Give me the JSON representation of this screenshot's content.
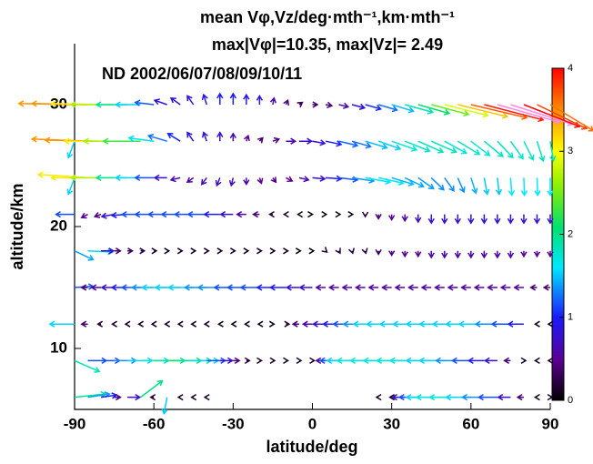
{
  "chart_data": {
    "type": "quiver",
    "title": "mean Vφ,Vz/deg·mth⁻¹,km·mth⁻¹",
    "subtitle": "max|Vφ|=10.35, max|Vz|= 2.49",
    "annotation": "ND  2002/06/07/08/09/10/11",
    "xlabel": "latitude/deg",
    "ylabel": "altitude/km",
    "xlim": [
      -90,
      90
    ],
    "ylim": [
      5,
      35
    ],
    "xticks": [
      -90,
      -60,
      -30,
      0,
      30,
      60,
      90
    ],
    "yticks": [
      10,
      20,
      30
    ],
    "colorbar": {
      "lim": [
        0,
        4
      ],
      "ticks": [
        0,
        1,
        2,
        3,
        4
      ]
    },
    "x": [
      -90,
      -85,
      -80,
      -75,
      -70,
      -65,
      -60,
      -55,
      -50,
      -45,
      -40,
      -35,
      -30,
      -25,
      -20,
      -15,
      -10,
      -5,
      0,
      5,
      10,
      15,
      20,
      25,
      30,
      35,
      40,
      45,
      50,
      55,
      60,
      65,
      70,
      75,
      80,
      85,
      90
    ],
    "rows": [
      {
        "altitude": 30,
        "u": [
          -9,
          -9,
          -8,
          -7,
          -5,
          -4,
          -3,
          -2,
          -1.5,
          -1,
          -0.5,
          0,
          0,
          0,
          0,
          0.2,
          0.3,
          0.5,
          0.8,
          1,
          1.5,
          2,
          2.5,
          3,
          3.5,
          4.5,
          5,
          6,
          7,
          8,
          9,
          9.5,
          10,
          10,
          9,
          8,
          7
        ],
        "w": [
          0.1,
          0.1,
          0.1,
          0,
          0,
          0,
          0.2,
          0.4,
          0.6,
          0.8,
          0.9,
          1,
          1,
          0.9,
          0.8,
          0.6,
          0.4,
          0.2,
          0,
          -0.1,
          -0.2,
          -0.3,
          -0.4,
          -0.5,
          -0.6,
          -0.7,
          -0.8,
          -0.9,
          -1,
          -1.1,
          -1.2,
          -1.4,
          -1.6,
          -1.8,
          -2,
          -2.2,
          -2.4
        ]
      },
      {
        "altitude": 27,
        "u": [
          -1,
          -9,
          -9,
          -8,
          -7,
          -6,
          -4,
          -3,
          -2,
          -1,
          -0.5,
          0,
          0,
          0.3,
          0.5,
          1,
          1.5,
          2,
          2,
          2.5,
          3,
          3,
          3.5,
          3.5,
          4,
          4,
          4,
          4,
          3.5,
          3.5,
          3,
          3,
          2.5,
          2,
          1.5,
          1,
          0.5
        ],
        "w": [
          -1.5,
          0.2,
          0.1,
          0,
          0,
          0,
          0.3,
          0.5,
          0.7,
          0.8,
          0.8,
          0.8,
          0.7,
          0.5,
          0.3,
          0.2,
          0,
          0,
          -0.2,
          -0.3,
          -0.4,
          -0.5,
          -0.6,
          -0.7,
          -0.8,
          -0.9,
          -1,
          -1,
          -1.1,
          -1.2,
          -1.3,
          -1.4,
          -1.5,
          -1.6,
          -1.7,
          -1.8,
          -1.8
        ]
      },
      {
        "altitude": 24,
        "u": [
          -1,
          -8,
          -8,
          -7,
          -5,
          -4,
          -3,
          -2,
          -1.5,
          -1,
          -0.8,
          -0.5,
          -0.3,
          0,
          0.3,
          0.5,
          1,
          1.5,
          2,
          2.5,
          3,
          3.5,
          4,
          4,
          3.5,
          3,
          2.5,
          2,
          1.5,
          1,
          0.8,
          0.5,
          0.3,
          0.2,
          0.1,
          0.1,
          0
        ],
        "w": [
          -1.5,
          0.3,
          0,
          0,
          0,
          0,
          0,
          0,
          -0.2,
          -0.4,
          -0.6,
          -0.7,
          -0.7,
          -0.6,
          -0.5,
          -0.4,
          -0.3,
          -0.2,
          -0.1,
          -0.1,
          -0.2,
          -0.3,
          -0.4,
          -0.5,
          -0.6,
          -0.8,
          -1,
          -1.1,
          -1.2,
          -1.3,
          -1.4,
          -1.5,
          -1.5,
          -1.6,
          -1.6,
          -1.6,
          -1.6
        ]
      },
      {
        "altitude": 21,
        "u": [
          -3,
          -1,
          -1,
          -2,
          -2.5,
          -3,
          -3,
          -3,
          -3,
          -3,
          -3,
          -2.5,
          -2,
          -1.5,
          -1,
          -0.5,
          -0.3,
          -0.2,
          0,
          0.1,
          0.2,
          0.1,
          0,
          0,
          0,
          0,
          0,
          0,
          0,
          0,
          0,
          0,
          0,
          0,
          0,
          0,
          0
        ],
        "w": [
          0,
          -0.3,
          -0.2,
          -0.2,
          -0.1,
          0,
          0,
          0,
          0,
          0,
          0,
          0,
          0,
          0,
          0,
          0,
          0,
          0,
          0,
          0,
          0,
          0,
          -0.2,
          -0.4,
          -0.5,
          -0.6,
          -0.7,
          -0.8,
          -0.8,
          -0.8,
          -0.8,
          -0.8,
          -0.8,
          -0.8,
          -0.8,
          -0.8,
          -0.8
        ]
      },
      {
        "altitude": 18,
        "u": [
          3,
          4,
          2,
          1,
          0.8,
          0.6,
          0.4,
          0.3,
          0.3,
          0.3,
          0.3,
          0.3,
          0.3,
          0.3,
          0.3,
          0.3,
          0.3,
          0.2,
          0.2,
          0.2,
          0.2,
          0.1,
          0.1,
          0,
          0,
          0,
          0,
          0,
          0,
          0,
          0,
          0,
          0,
          0,
          0,
          0,
          0
        ],
        "w": [
          -0.8,
          -0.1,
          0,
          0,
          0,
          0,
          0,
          0,
          0,
          0,
          0,
          0,
          0,
          0,
          0,
          0,
          0,
          0,
          0,
          -0.1,
          -0.2,
          -0.2,
          -0.2,
          -0.3,
          -0.4,
          -0.5,
          -0.5,
          -0.6,
          -0.6,
          -0.6,
          -0.6,
          -0.6,
          -0.6,
          -0.6,
          -0.5,
          -0.5,
          -0.5
        ]
      },
      {
        "altitude": 15,
        "u": [
          3,
          -1,
          -1.5,
          -2,
          -2.5,
          -3,
          -3.5,
          -4,
          -4,
          -4,
          -3.5,
          -3.5,
          -3,
          -3,
          -3,
          -2.5,
          -2.5,
          -2,
          -2,
          -1.5,
          -1.5,
          -1.5,
          -1.5,
          -1.5,
          -1.5,
          -1.5,
          -1.5,
          -1.5,
          -1.5,
          -1.5,
          -1.5,
          -1.5,
          -1.5,
          -1.5,
          -1.5,
          -1,
          -1
        ],
        "w": [
          0.1,
          0,
          0,
          0,
          0,
          0,
          0,
          0,
          0,
          0,
          0,
          0,
          0,
          0,
          0,
          0,
          0,
          0,
          0,
          0,
          0,
          0,
          0,
          0,
          0,
          0,
          0,
          0,
          0,
          0,
          0,
          0,
          0,
          0,
          0,
          0,
          0
        ]
      },
      {
        "altitude": 12,
        "u": [
          -4,
          -1,
          -0.5,
          -0.3,
          -0.3,
          -0.3,
          -0.3,
          -0.3,
          -0.3,
          -0.3,
          -0.3,
          -0.2,
          -0.2,
          -0.2,
          -0.2,
          0.2,
          0.5,
          -1,
          -1.5,
          -2,
          -2.5,
          -3,
          -3.5,
          -4,
          -4,
          -4,
          -4,
          -4,
          -4,
          -4,
          -4,
          -4,
          -3.5,
          -3,
          -2.5,
          -0.3,
          -0.3
        ],
        "w": [
          0,
          0,
          0,
          0,
          0,
          0,
          0,
          0,
          0,
          0,
          0,
          0,
          0,
          0,
          0,
          0,
          0,
          0,
          0,
          0,
          0,
          0,
          0,
          0,
          0,
          0,
          0,
          0,
          0,
          0,
          0,
          0,
          0,
          0,
          0,
          0,
          0
        ]
      },
      {
        "altitude": 9,
        "u": [
          4,
          3,
          3,
          3.5,
          4,
          4.5,
          5,
          5.5,
          5,
          4,
          3,
          2,
          1,
          0.5,
          0.3,
          0.3,
          0.3,
          0.3,
          0.3,
          -1.5,
          -3,
          -4,
          -4.5,
          -4.5,
          -4.5,
          -4.5,
          -4.5,
          -4,
          -4,
          -3.5,
          -3,
          -2.5,
          -2,
          -1,
          0.3,
          -0.3,
          -0.3
        ],
        "w": [
          -1,
          0,
          0,
          0,
          0,
          0,
          0,
          0,
          0,
          0,
          0,
          0,
          0,
          0,
          0,
          0,
          0,
          0,
          0,
          0,
          0,
          0,
          0,
          0,
          0,
          0,
          0,
          0,
          0,
          0,
          0,
          0,
          0,
          0,
          0,
          0,
          0
        ]
      },
      {
        "altitude": 6,
        "u": [
          5,
          3.5,
          2.5,
          1,
          2,
          3.5,
          -0.5,
          -0.5,
          -0.3,
          -0.3,
          -0.3,
          null,
          null,
          null,
          null,
          null,
          null,
          null,
          null,
          null,
          null,
          null,
          null,
          -0.3,
          -0.3,
          -2,
          -3,
          -4,
          -4.5,
          -4.5,
          -4,
          -3.5,
          -3,
          -2,
          -1,
          -0.3,
          0.3
        ],
        "w": [
          0.3,
          0.3,
          0.2,
          0,
          0,
          1.5,
          0,
          -1.5,
          0,
          0,
          0,
          null,
          null,
          null,
          null,
          null,
          null,
          null,
          null,
          null,
          null,
          null,
          null,
          0,
          0,
          0,
          0,
          0,
          0,
          0,
          0,
          0,
          0,
          0,
          0,
          0,
          0
        ]
      }
    ]
  }
}
